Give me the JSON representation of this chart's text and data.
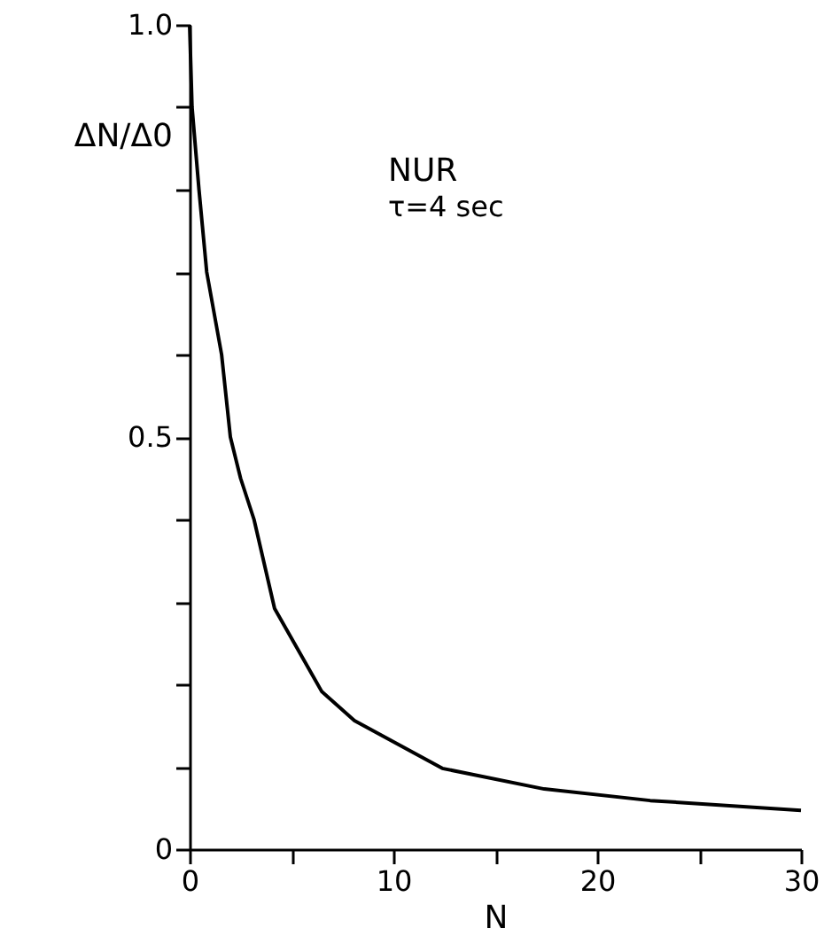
{
  "chart_data": {
    "type": "line",
    "xlabel": "N",
    "ylabel": "ΔN/Δ0",
    "x": [
      0,
      0.12,
      0.46,
      0.84,
      1.57,
      2.0,
      2.5,
      3.16,
      4.17,
      6.49,
      8.09,
      12.4,
      17.4,
      22.6,
      30
    ],
    "series": [
      {
        "color": "#000000",
        "values": [
          1.0,
          0.9,
          0.8,
          0.7,
          0.6,
          0.5,
          0.45,
          0.4,
          0.292,
          0.191,
          0.156,
          0.098,
          0.073,
          0.059,
          0.047
        ]
      }
    ],
    "xlim": [
      0,
      30
    ],
    "ylim": [
      0,
      1.0
    ],
    "xticks": [
      0,
      {
        "value": 5,
        "label": null
      },
      10,
      {
        "value": 15,
        "label": null
      },
      20,
      {
        "value": 25,
        "label": null
      },
      30
    ],
    "yticks": [
      0,
      {
        "value": 0.1,
        "label": null
      },
      {
        "value": 0.2,
        "label": null
      },
      {
        "value": 0.3,
        "label": null
      },
      {
        "value": 0.4,
        "label": null
      },
      0.5,
      {
        "value": 0.6,
        "label": null
      },
      {
        "value": 0.7,
        "label": null
      },
      {
        "value": 0.8,
        "label": null
      },
      {
        "value": 0.9,
        "label": null
      },
      {
        "value": 1.0,
        "label": "1.0"
      }
    ],
    "annotations": [
      "NUR",
      "τ=4 sec"
    ],
    "marker": "none",
    "line_style": "solid"
  }
}
